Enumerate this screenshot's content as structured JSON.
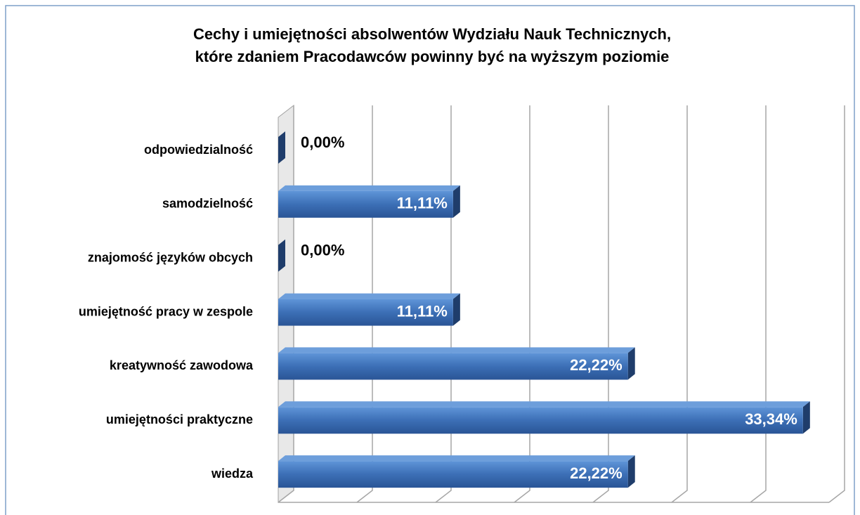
{
  "chart_data": {
    "type": "hbar3d",
    "title": "Cechy i umiejętności absolwentów Wydziału Nauk Technicznych,",
    "subtitle": "które zdaniem Pracodawców powinny być na wyższym poziomie",
    "categories": [
      "odpowiedzialność",
      "samodzielność",
      "znajomość języków obcych",
      "umiejętność pracy w zespole",
      "kreatywność zawodowa",
      "umiejętności praktyczne",
      "wiedza"
    ],
    "values": [
      0,
      11.11,
      0,
      11.11,
      22.22,
      33.34,
      22.22
    ],
    "value_labels": [
      "0,00%",
      "11,11%",
      "0,00%",
      "11,11%",
      "22,22%",
      "33,34%",
      "22,22%"
    ],
    "color": "#3c6fb6",
    "xlim": [
      0,
      35
    ],
    "xticks": [
      0,
      5,
      10,
      15,
      20,
      25,
      30,
      35
    ],
    "grid": true
  }
}
